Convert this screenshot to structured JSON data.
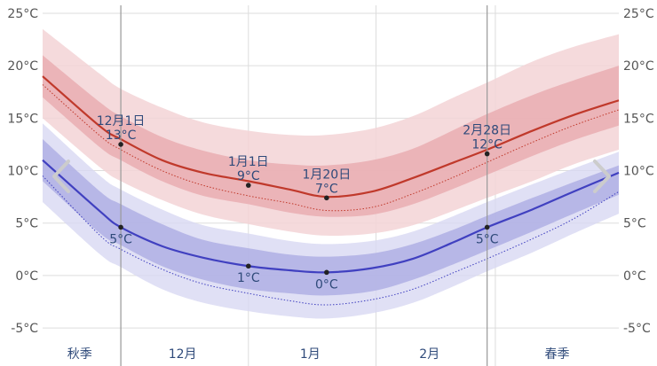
{
  "chart_data": {
    "type": "area",
    "title": "",
    "xlabel": "",
    "ylabel": "",
    "ylim": [
      -5.5,
      25
    ],
    "yticks": [
      -5,
      0,
      5,
      10,
      15,
      20,
      25
    ],
    "ytick_labels": [
      "-5°C",
      "0°C",
      "5°C",
      "10°C",
      "15°C",
      "20°C",
      "25°C"
    ],
    "x_start": "2023-11-12",
    "x_end": "2024-03-31",
    "month_labels": [
      {
        "label": "秋季",
        "date": "2023-11-21"
      },
      {
        "label": "12月",
        "date": "2023-12-16"
      },
      {
        "label": "1月",
        "date": "2024-01-16"
      },
      {
        "label": "2月",
        "date": "2024-02-14"
      },
      {
        "label": "春季",
        "date": "2024-03-16"
      }
    ],
    "month_dividers": [
      "2023-12-01",
      "2024-01-01",
      "2024-02-01",
      "2024-03-01"
    ],
    "season_dividers": [
      "2023-12-01",
      "2024-02-28"
    ],
    "x": [
      "2023-11-12",
      "2023-11-26",
      "2023-12-01",
      "2023-12-11",
      "2023-12-21",
      "2024-01-01",
      "2024-01-11",
      "2024-01-20",
      "2024-01-31",
      "2024-02-10",
      "2024-02-20",
      "2024-02-28",
      "2024-03-10",
      "2024-03-20",
      "2024-03-31"
    ],
    "series": [
      {
        "role": "high_band_outer_upper",
        "color": "#f3d3d6",
        "values": [
          23.5,
          19.2,
          17.8,
          16.0,
          14.6,
          13.8,
          13.4,
          13.4,
          14.0,
          15.2,
          17.0,
          18.4,
          20.4,
          21.8,
          23.0
        ]
      },
      {
        "role": "high_band_inner_upper",
        "color": "#e8aaaf",
        "values": [
          21.0,
          16.5,
          15.2,
          13.2,
          11.9,
          11.0,
          10.6,
          10.5,
          11.0,
          12.1,
          13.9,
          15.4,
          17.2,
          18.6,
          20.0
        ]
      },
      {
        "role": "high_mean",
        "color": "#c0392b",
        "values": [
          19.0,
          14.2,
          13.0,
          11.0,
          9.8,
          9.0,
          8.2,
          7.5,
          8.0,
          9.3,
          10.8,
          12.0,
          13.8,
          15.3,
          16.7
        ]
      },
      {
        "role": "high_band_inner_lower",
        "color": "#e8aaaf",
        "values": [
          17.0,
          12.2,
          11.0,
          9.0,
          7.6,
          6.8,
          6.0,
          5.6,
          5.8,
          6.8,
          8.3,
          9.6,
          11.4,
          12.9,
          14.3
        ]
      },
      {
        "role": "high_band_outer_lower",
        "color": "#f3d3d6",
        "values": [
          15.0,
          10.3,
          9.0,
          7.2,
          5.8,
          4.9,
          4.2,
          3.8,
          4.0,
          4.8,
          6.2,
          7.4,
          9.0,
          10.6,
          12.0
        ]
      },
      {
        "role": "high_normal_dotted",
        "color": "#c0392b",
        "values": [
          18.2,
          13.3,
          12.0,
          10.0,
          8.6,
          7.6,
          6.9,
          6.2,
          6.5,
          7.8,
          9.4,
          10.8,
          12.7,
          14.3,
          15.8
        ]
      },
      {
        "role": "low_band_outer_upper",
        "color": "#d8d8f2",
        "values": [
          14.5,
          9.5,
          8.2,
          6.3,
          4.8,
          4.0,
          3.3,
          3.0,
          3.3,
          4.2,
          5.7,
          7.0,
          8.7,
          10.2,
          11.8
        ]
      },
      {
        "role": "low_band_inner_upper",
        "color": "#a9a9e2",
        "values": [
          13.0,
          8.0,
          6.8,
          4.9,
          3.4,
          2.6,
          2.0,
          1.8,
          2.1,
          3.0,
          4.4,
          5.7,
          7.4,
          8.9,
          10.5
        ]
      },
      {
        "role": "low_mean",
        "color": "#4040c0",
        "values": [
          11.0,
          6.1,
          4.6,
          2.8,
          1.7,
          0.9,
          0.5,
          0.3,
          0.7,
          1.6,
          3.2,
          4.6,
          6.3,
          8.0,
          9.8
        ]
      },
      {
        "role": "low_band_inner_lower",
        "color": "#a9a9e2",
        "values": [
          9.0,
          4.0,
          2.9,
          0.9,
          -0.4,
          -1.3,
          -1.7,
          -1.9,
          -1.5,
          -0.4,
          1.1,
          2.4,
          4.2,
          5.9,
          7.7
        ]
      },
      {
        "role": "low_band_outer_lower",
        "color": "#d8d8f2",
        "values": [
          7.0,
          2.0,
          0.8,
          -1.3,
          -2.6,
          -3.4,
          -3.9,
          -4.1,
          -3.6,
          -2.6,
          -1.0,
          0.4,
          2.2,
          4.0,
          5.9
        ]
      },
      {
        "role": "low_normal_dotted",
        "color": "#4040c0",
        "values": [
          9.5,
          3.8,
          2.5,
          0.6,
          -0.8,
          -1.7,
          -2.4,
          -2.8,
          -2.3,
          -1.3,
          0.3,
          1.6,
          3.5,
          5.4,
          8.0
        ]
      }
    ],
    "annotations": [
      {
        "date": "2023-12-01",
        "value": 12.5,
        "series": "high",
        "lines": [
          "12月1日",
          "13°C"
        ],
        "position": "above"
      },
      {
        "date": "2023-12-01",
        "value": 4.6,
        "series": "low",
        "lines": [
          "5°C"
        ],
        "position": "below"
      },
      {
        "date": "2024-01-01",
        "value": 8.6,
        "series": "high",
        "lines": [
          "1月1日",
          "9°C"
        ],
        "position": "above"
      },
      {
        "date": "2024-01-01",
        "value": 0.9,
        "series": "low",
        "lines": [
          "1°C"
        ],
        "position": "below"
      },
      {
        "date": "2024-01-20",
        "value": 7.4,
        "series": "high",
        "lines": [
          "1月20日",
          "7°C"
        ],
        "position": "above"
      },
      {
        "date": "2024-01-20",
        "value": 0.3,
        "series": "low",
        "lines": [
          "0°C"
        ],
        "position": "below"
      },
      {
        "date": "2024-02-28",
        "value": 11.6,
        "series": "high",
        "lines": [
          "2月28日",
          "12°C"
        ],
        "position": "above"
      },
      {
        "date": "2024-02-28",
        "value": 4.6,
        "series": "low",
        "lines": [
          "5°C"
        ],
        "position": "below"
      }
    ],
    "grid": true,
    "colors": {
      "grid_line": "#dddddd",
      "season_line": "#999999",
      "tick_text": "#555555",
      "label_text": "#2f4a7a",
      "marker": "#222222",
      "arrow": "#cccccc"
    }
  },
  "nav": {
    "left_icon": "chevron-left-icon",
    "right_icon": "chevron-right-icon"
  }
}
